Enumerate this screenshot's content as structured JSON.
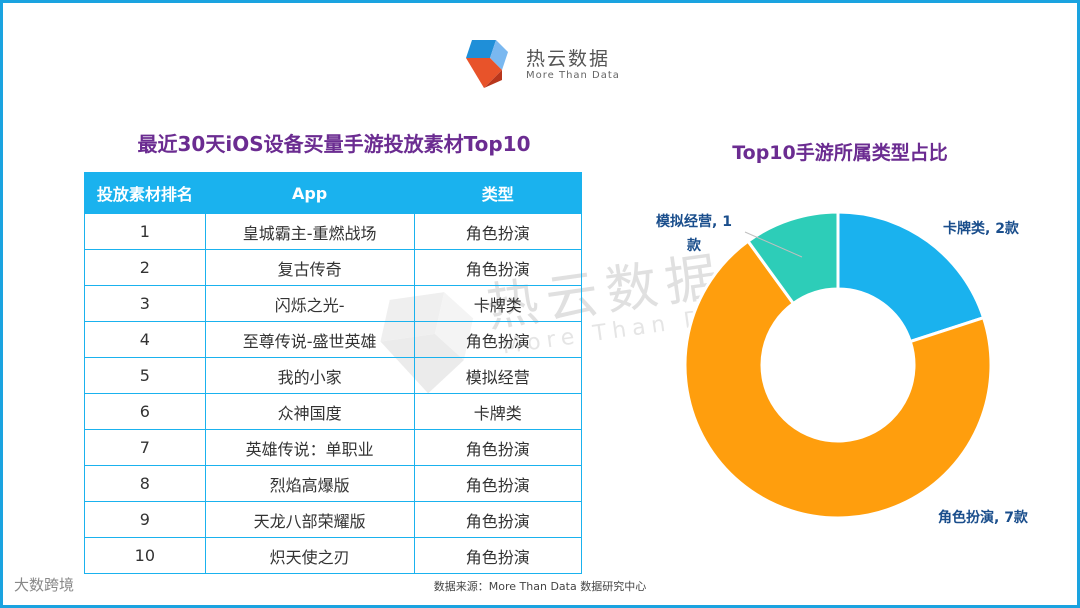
{
  "logo": {
    "name": "热云数据",
    "tagline": "More Than Data"
  },
  "table": {
    "title": "最近30天iOS设备买量手游投放素材Top10",
    "headers": [
      "投放素材排名",
      "App",
      "类型"
    ],
    "rows": [
      [
        "1",
        "皇城霸主-重燃战场",
        "角色扮演"
      ],
      [
        "2",
        "复古传奇",
        "角色扮演"
      ],
      [
        "3",
        "闪烁之光-",
        "卡牌类"
      ],
      [
        "4",
        "至尊传说-盛世英雄",
        "角色扮演"
      ],
      [
        "5",
        "我的小家",
        "模拟经营"
      ],
      [
        "6",
        "众神国度",
        "卡牌类"
      ],
      [
        "7",
        "英雄传说：单职业",
        "角色扮演"
      ],
      [
        "8",
        "烈焰高爆版",
        "角色扮演"
      ],
      [
        "9",
        "天龙八部荣耀版",
        "角色扮演"
      ],
      [
        "10",
        "炽天使之刃",
        "角色扮演"
      ]
    ]
  },
  "chart_data": {
    "type": "pie",
    "style": "donut",
    "title": "Top10手游所属类型占比",
    "categories": [
      "卡牌类",
      "角色扮演",
      "模拟经营"
    ],
    "values": [
      2,
      7,
      1
    ],
    "labels": [
      "卡牌类, 2款",
      "角色扮演, 7款",
      "模拟经营, 1款"
    ],
    "label_lines": [
      [
        "卡牌类, 2款"
      ],
      [
        "角色扮演, 7款"
      ],
      [
        "模拟经营, 1",
        "款"
      ]
    ],
    "colors": [
      "#1ab2ee",
      "#ff9e0d",
      "#2dcdb8"
    ]
  },
  "watermark": {
    "cn": "热云数据",
    "en": "More Than Data"
  },
  "source": "数据来源：More Than Data 数据研究中心",
  "brand": "大数跨境"
}
